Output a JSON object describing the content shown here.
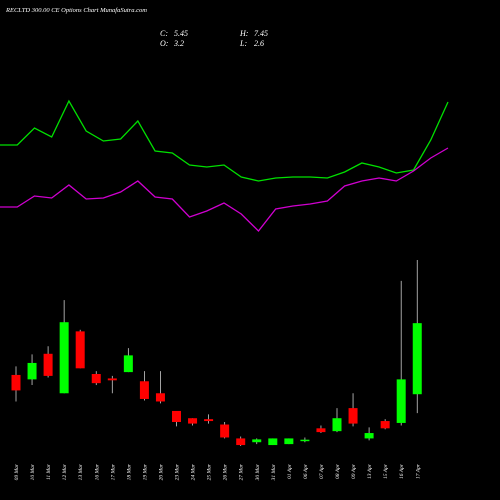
{
  "chart_data": [
    {
      "type": "line",
      "title": "RECLTD 300.00  CE Options  Chart MunafaSutra.com",
      "series": [
        {
          "color": "#00e000",
          "values": [
            105,
            105,
            122,
            113,
            149,
            119,
            109,
            111,
            129,
            99,
            97,
            85,
            83,
            85,
            73,
            69,
            72,
            73,
            73,
            72,
            78,
            87,
            83,
            77,
            80,
            110,
            148
          ]
        },
        {
          "color": "#d000d0",
          "values": [
            43,
            43,
            54,
            52,
            65,
            51,
            52,
            58,
            69,
            53,
            51,
            33,
            39,
            47,
            36,
            19,
            41,
            44,
            46,
            49,
            64,
            69,
            72,
            69,
            79,
            92,
            102
          ]
        }
      ]
    },
    {
      "type": "candlestick",
      "ohlc_labels": [
        "C:",
        "H:",
        "O:",
        "L:"
      ],
      "up_color": "#00ff00",
      "down_color": "#ff0000",
      "categories": [
        "09 Mar",
        "10 Mar",
        "11 Mar",
        "12 Mar",
        "13 Mar",
        "16 Mar",
        "17 Mar",
        "18 Mar",
        "19 Mar",
        "20 Mar",
        "23 Mar",
        "24 Mar",
        "25 Mar",
        "26 Mar",
        "27 Mar",
        "30 Mar",
        "31 Mar",
        "01 Apr",
        "06 Apr",
        "07 Apr",
        "08 Apr",
        "09 Apr",
        "13 Apr",
        "15 Apr",
        "16 Apr",
        "17 Apr"
      ],
      "open": [
        3.81,
        3.67,
        4.48,
        3.23,
        5.19,
        3.84,
        3.7,
        3.9,
        3.61,
        3.23,
        2.67,
        2.44,
        2.41,
        2.24,
        1.8,
        1.68,
        1.59,
        1.62,
        1.74,
        2.12,
        2.03,
        2.76,
        1.8,
        2.35,
        2.29,
        3.2
      ],
      "high": [
        4.08,
        4.46,
        4.72,
        6.18,
        5.24,
        3.93,
        3.78,
        4.66,
        3.93,
        3.93,
        2.67,
        2.44,
        2.56,
        2.32,
        1.86,
        1.8,
        1.8,
        1.8,
        1.83,
        2.21,
        2.76,
        3.23,
        2.15,
        2.41,
        6.79,
        7.45
      ],
      "low": [
        2.97,
        3.49,
        3.73,
        3.23,
        4.02,
        3.49,
        3.23,
        3.9,
        3.0,
        2.91,
        2.18,
        2.21,
        2.27,
        1.8,
        1.56,
        1.62,
        1.59,
        1.62,
        1.68,
        1.97,
        2.0,
        2.18,
        1.74,
        2.09,
        2.21,
        2.6
      ],
      "close": [
        3.32,
        4.19,
        3.78,
        5.48,
        4.02,
        3.55,
        3.64,
        4.43,
        3.05,
        2.97,
        2.32,
        2.27,
        2.35,
        1.83,
        1.59,
        1.77,
        1.8,
        1.8,
        1.76,
        2.0,
        2.44,
        2.27,
        1.97,
        2.12,
        3.67,
        5.45
      ]
    }
  ]
}
